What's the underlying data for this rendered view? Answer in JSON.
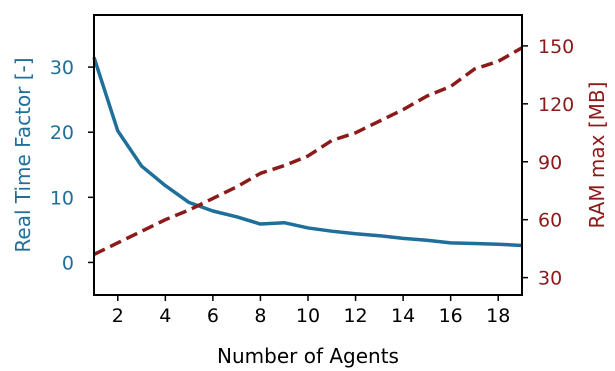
{
  "chart_data": {
    "type": "line",
    "title": "",
    "xlabel": "Number of Agents",
    "xlim": [
      1,
      19
    ],
    "x_ticks": [
      2,
      4,
      6,
      8,
      10,
      12,
      14,
      16,
      18
    ],
    "left_axis": {
      "label": "Real Time Factor [-]",
      "color": "#1f6f9b",
      "ylim": [
        -5,
        38
      ],
      "ticks": [
        0,
        10,
        20,
        30
      ]
    },
    "right_axis": {
      "label": "RAM max [MB]",
      "color": "#8b1a1a",
      "ylim": [
        21,
        166
      ],
      "ticks": [
        30,
        60,
        90,
        120,
        150
      ]
    },
    "series": [
      {
        "axis": "left",
        "style": "solid",
        "color": "#1f6f9b",
        "x": [
          1,
          2,
          3,
          4,
          5,
          6,
          7,
          8,
          9,
          10,
          11,
          12,
          13,
          14,
          15,
          16,
          17,
          18,
          19
        ],
        "values": [
          31.5,
          20.2,
          14.8,
          11.8,
          9.2,
          7.9,
          7.0,
          5.9,
          6.1,
          5.3,
          4.8,
          4.4,
          4.1,
          3.7,
          3.4,
          3.0,
          2.9,
          2.8,
          2.6
        ]
      },
      {
        "axis": "right",
        "style": "dashed",
        "color": "#8b1a1a",
        "x": [
          1,
          2,
          3,
          4,
          5,
          6,
          7,
          8,
          9,
          10,
          11,
          12,
          13,
          14,
          15,
          16,
          17,
          18,
          19
        ],
        "values": [
          42,
          48,
          54,
          60,
          65,
          71,
          77,
          84,
          88,
          93,
          101,
          105,
          111,
          117,
          124,
          129,
          138,
          142,
          149
        ]
      }
    ],
    "grid": false,
    "legend": "none"
  }
}
